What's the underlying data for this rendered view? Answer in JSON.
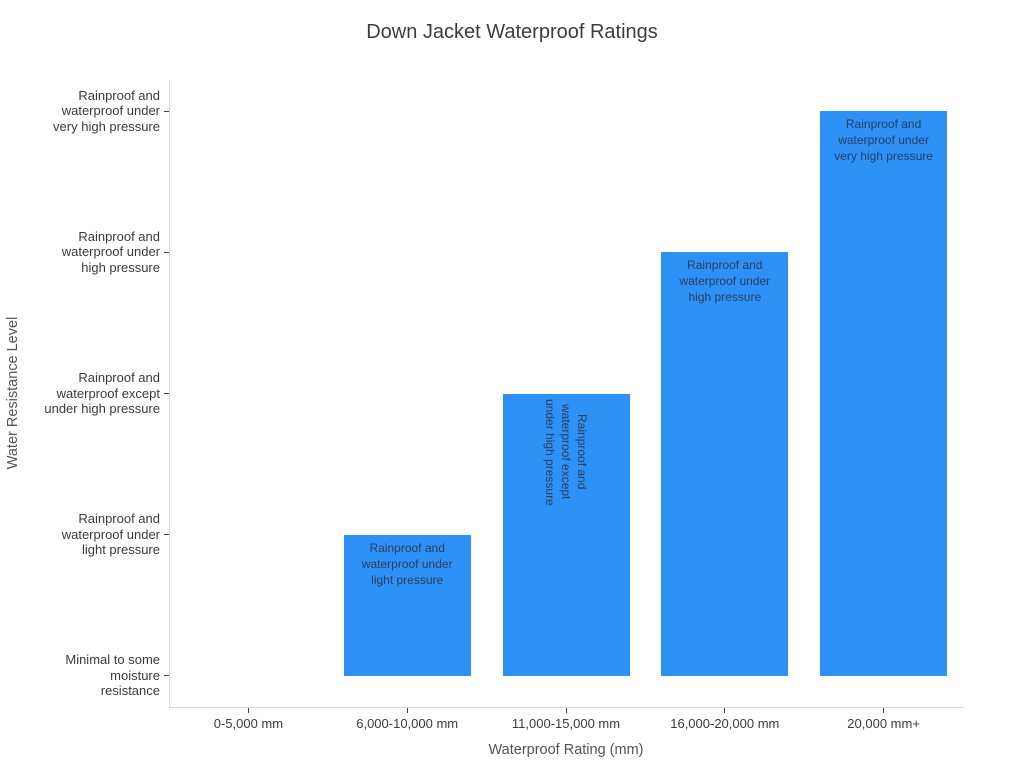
{
  "page": {
    "background": "#ffffff"
  },
  "colors": {
    "bar": "#2D91F5",
    "bar_label_text": "#2a3f5f",
    "tick_label": "#3b3b3b",
    "axis_title": "#545454",
    "title": "#3d3d3d",
    "axis_line": "#d9d9d9",
    "tick_mark": "#444444"
  },
  "chart_data": {
    "type": "bar",
    "title": "Down Jacket Waterproof Ratings",
    "xlabel": "Waterproof Rating (mm)",
    "ylabel": "Water Resistance Level",
    "categories": [
      "0-5,000 mm",
      "6,000-10,000 mm",
      "11,000-15,000 mm",
      "16,000-20,000 mm",
      "20,000 mm+"
    ],
    "values": [
      0,
      1,
      2,
      3,
      4
    ],
    "y_tick_labels": [
      "Minimal to some moisture resistance",
      "Rainproof and waterproof under light pressure",
      "Rainproof and waterproof except under high pressure",
      "Rainproof and waterproof under high pressure",
      "Rainproof and waterproof under very high pressure"
    ],
    "y_tick_lines": [
      [
        "Minimal to some",
        "moisture",
        "resistance"
      ],
      [
        "Rainproof and",
        "waterproof under",
        "light pressure"
      ],
      [
        "Rainproof and",
        "waterproof except",
        "under high pressure"
      ],
      [
        "Rainproof and",
        "waterproof under",
        "high pressure"
      ],
      [
        "Rainproof and",
        "waterproof under",
        "very high pressure"
      ]
    ],
    "bar_labels": [
      "",
      "Rainproof and waterproof under light pressure",
      "Rainproof and waterproof except under high pressure",
      "Rainproof and waterproof under high pressure",
      "Rainproof and waterproof under very high pressure"
    ],
    "bar_label_lines": [
      [],
      [
        "Rainproof and",
        "waterproof under",
        "light pressure"
      ],
      [
        "Rainproof and",
        "waterproof except",
        "under high pressure"
      ],
      [
        "Rainproof and",
        "waterproof under",
        "high pressure"
      ],
      [
        "Rainproof and",
        "waterproof under",
        "very high pressure"
      ]
    ],
    "bar_label_rotation": [
      0,
      0,
      90,
      0,
      0
    ],
    "ylim": [
      -0.22,
      4.22
    ],
    "grid": false,
    "legend": false
  }
}
